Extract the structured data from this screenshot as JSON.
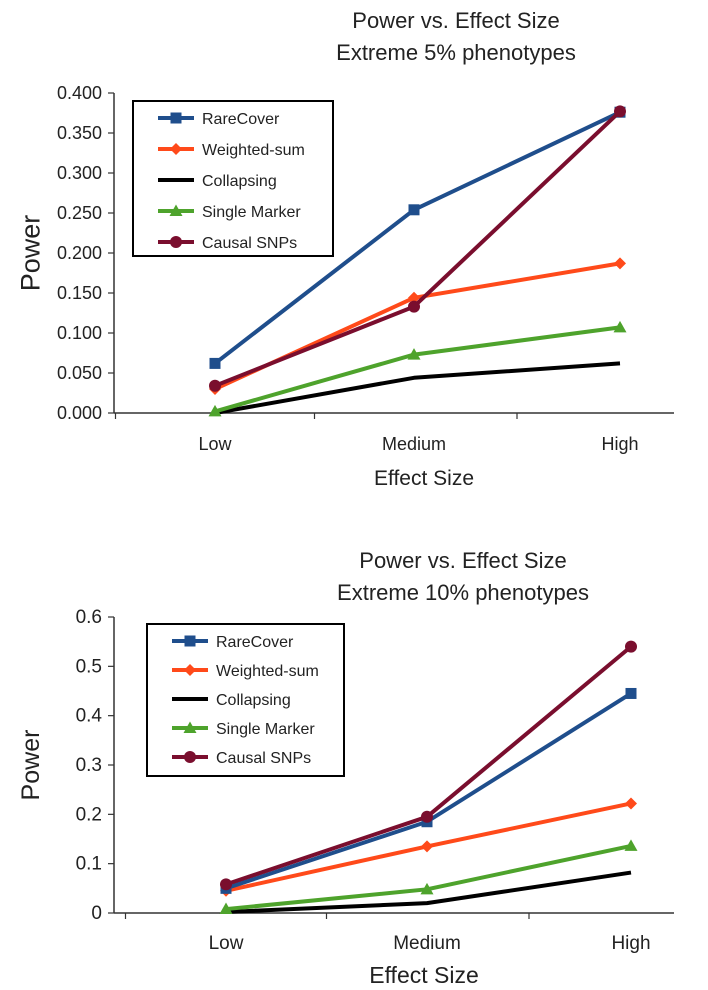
{
  "chart_data": [
    {
      "type": "line",
      "title": [
        "Power vs. Effect Size",
        "Extreme 5% phenotypes"
      ],
      "xlabel": "Effect Size",
      "ylabel": "Power",
      "categories": [
        "Low",
        "Medium",
        "High"
      ],
      "ylim": [
        0,
        0.4
      ],
      "yticks": [
        "0.000",
        "0.050",
        "0.100",
        "0.150",
        "0.200",
        "0.250",
        "0.300",
        "0.350",
        "0.400"
      ],
      "legend_position": "top-left",
      "series": [
        {
          "name": "RareCover",
          "values": [
            0.062,
            0.254,
            0.376
          ],
          "color": "#1f4e8c",
          "marker": "square"
        },
        {
          "name": "Weighted-sum",
          "values": [
            0.03,
            0.144,
            0.187
          ],
          "color": "#ff4a1a",
          "marker": "diamond"
        },
        {
          "name": "Collapsing",
          "values": [
            0.0,
            0.044,
            0.062
          ],
          "color": "#000000",
          "marker": "none"
        },
        {
          "name": "Single Marker",
          "values": [
            0.002,
            0.073,
            0.107
          ],
          "color": "#4ea32c",
          "marker": "triangle"
        },
        {
          "name": "Causal SNPs",
          "values": [
            0.034,
            0.133,
            0.377
          ],
          "color": "#7a0e2e",
          "marker": "circle"
        }
      ]
    },
    {
      "type": "line",
      "title": [
        "Power vs. Effect Size",
        "Extreme 10% phenotypes"
      ],
      "xlabel": "Effect Size",
      "ylabel": "Power",
      "categories": [
        "Low",
        "Medium",
        "High"
      ],
      "ylim": [
        0,
        0.6
      ],
      "yticks": [
        "0",
        "0.1",
        "0.2",
        "0.3",
        "0.4",
        "0.5",
        "0.6"
      ],
      "legend_position": "top-left",
      "series": [
        {
          "name": "RareCover",
          "values": [
            0.05,
            0.185,
            0.445
          ],
          "color": "#1f4e8c",
          "marker": "square"
        },
        {
          "name": "Weighted-sum",
          "values": [
            0.045,
            0.135,
            0.222
          ],
          "color": "#ff4a1a",
          "marker": "diamond"
        },
        {
          "name": "Collapsing",
          "values": [
            0.002,
            0.02,
            0.082
          ],
          "color": "#000000",
          "marker": "none"
        },
        {
          "name": "Single Marker",
          "values": [
            0.008,
            0.048,
            0.136
          ],
          "color": "#4ea32c",
          "marker": "triangle"
        },
        {
          "name": "Causal SNPs",
          "values": [
            0.058,
            0.195,
            0.54
          ],
          "color": "#7a0e2e",
          "marker": "circle"
        }
      ]
    }
  ]
}
